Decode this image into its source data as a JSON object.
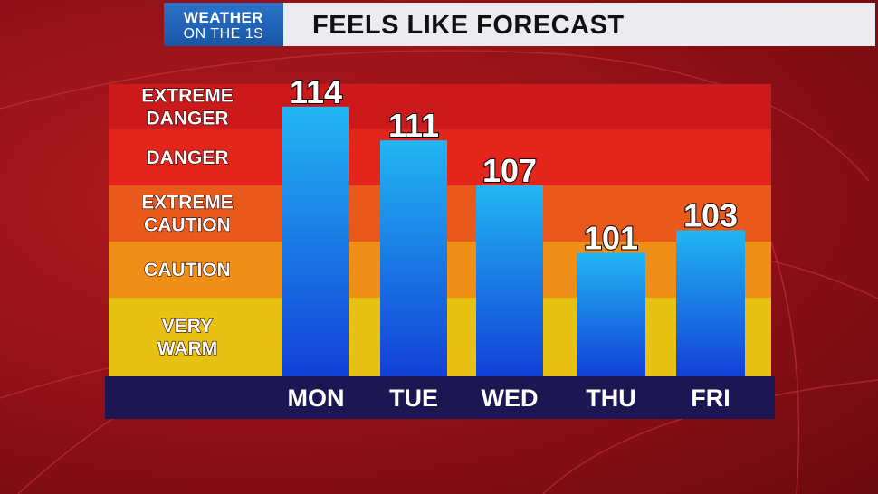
{
  "header": {
    "logo_line1": "WEATHER",
    "logo_line2": "ON THE 1S",
    "title": "FEELS LIKE FORECAST"
  },
  "chart_data": {
    "type": "bar",
    "categories": [
      "MON",
      "TUE",
      "WED",
      "THU",
      "FRI"
    ],
    "values": [
      114,
      111,
      107,
      101,
      103
    ],
    "ylim": [
      90,
      116
    ],
    "bar_color": "#1e78e6",
    "zones": [
      {
        "label_lines": [
          "EXTREME",
          "DANGER"
        ],
        "from": 112,
        "to": 116,
        "color": "#cc1a1c"
      },
      {
        "label_lines": [
          "DANGER"
        ],
        "from": 107,
        "to": 112,
        "color": "#e4251c"
      },
      {
        "label_lines": [
          "EXTREME",
          "CAUTION"
        ],
        "from": 102,
        "to": 107,
        "color": "#e9591b"
      },
      {
        "label_lines": [
          "CAUTION"
        ],
        "from": 97,
        "to": 102,
        "color": "#ef8f17"
      },
      {
        "label_lines": [
          "VERY",
          "WARM"
        ],
        "from": 90,
        "to": 97,
        "color": "#e8c212"
      }
    ]
  }
}
